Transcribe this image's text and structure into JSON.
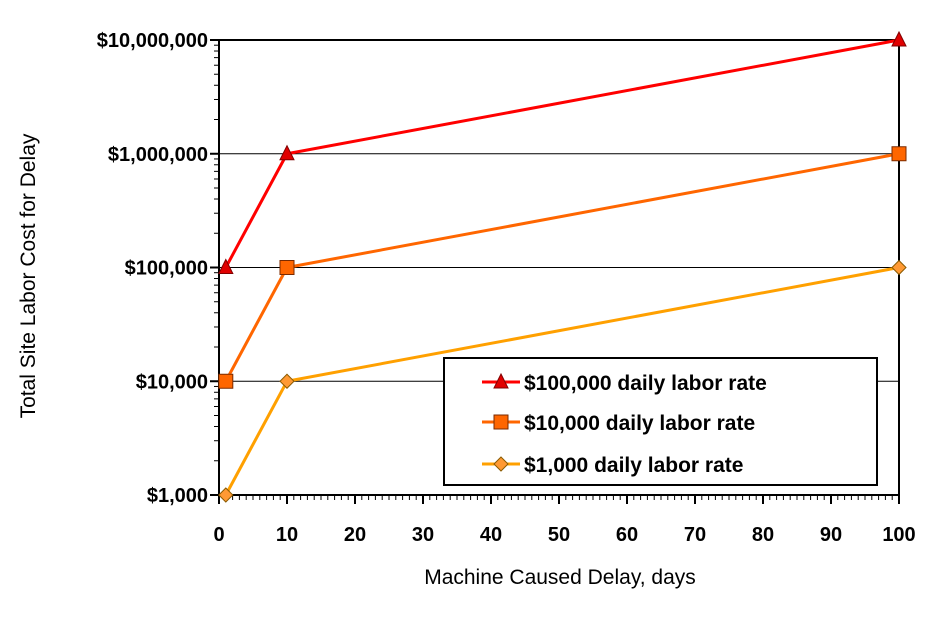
{
  "chart_data": {
    "type": "line",
    "title": "",
    "xlabel": "Machine Caused Delay, days",
    "ylabel": "Total Site Labor Cost for Delay",
    "x_scale": "linear",
    "y_scale": "log",
    "xlim": [
      0,
      100
    ],
    "ylim": [
      1000,
      10000000
    ],
    "x_ticks": [
      0,
      10,
      20,
      30,
      40,
      50,
      60,
      70,
      80,
      90,
      100
    ],
    "x_tick_labels": [
      "0",
      "10",
      "20",
      "30",
      "40",
      "50",
      "60",
      "70",
      "80",
      "90",
      "100"
    ],
    "y_ticks": [
      1000,
      10000,
      100000,
      1000000,
      10000000
    ],
    "y_tick_labels": [
      "$1,000",
      "$10,000",
      "$100,000",
      "$1,000,000",
      "$10,000,000"
    ],
    "grid": "horizontal major lines",
    "legend_position": "bottom-right",
    "series": [
      {
        "name": "$100,000 daily labor rate",
        "color": "#ff0000",
        "marker_color": "#e00000",
        "marker": "triangle",
        "x": [
          1,
          10,
          100
        ],
        "y": [
          100000,
          1000000,
          10000000
        ]
      },
      {
        "name": "$10,000 daily labor rate",
        "color": "#ff6600",
        "marker_color": "#ff6600",
        "marker": "square",
        "x": [
          1,
          10,
          100
        ],
        "y": [
          10000,
          100000,
          1000000
        ]
      },
      {
        "name": "$1,000 daily labor rate",
        "color": "#ffa000",
        "marker_color": "#ff9933",
        "marker": "diamond",
        "x": [
          1,
          10,
          100
        ],
        "y": [
          1000,
          10000,
          100000
        ]
      }
    ]
  }
}
